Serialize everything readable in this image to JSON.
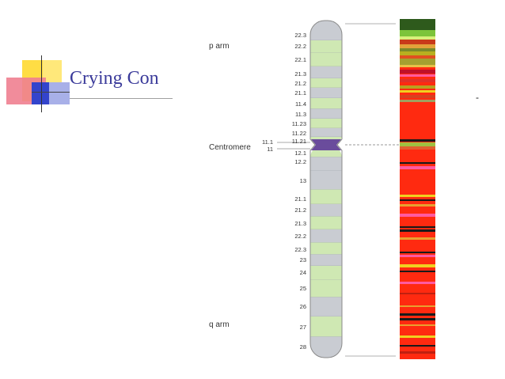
{
  "slide": {
    "title": "Crying Con",
    "marker": "-"
  },
  "colors": {
    "title": "#3a3a9a",
    "band_light": "#cfe8b3",
    "band_gray": "#c9ccd2",
    "centromere": "#6a4c9c",
    "deco_yellow": "#ffdd44",
    "deco_blue": "#3344cc",
    "deco_red": "#ee6677"
  },
  "chromosome": {
    "labels": {
      "p_arm": "p arm",
      "centromere": "Centromere",
      "q_arm": "q arm"
    },
    "left_bands": [
      "11.1",
      "11"
    ],
    "bands": [
      {
        "label": "22.3",
        "stain": "gray"
      },
      {
        "label": "22.2",
        "stain": "light"
      },
      {
        "label": "22.1",
        "stain": "light"
      },
      {
        "label": "21.3",
        "stain": "gray"
      },
      {
        "label": "21.2",
        "stain": "light"
      },
      {
        "label": "21.1",
        "stain": "gray"
      },
      {
        "label": "11.4",
        "stain": "light"
      },
      {
        "label": "11.3",
        "stain": "gray"
      },
      {
        "label": "11.23",
        "stain": "light"
      },
      {
        "label": "11.22",
        "stain": "gray"
      },
      {
        "label": "11.21",
        "stain": "light"
      },
      {
        "label": "12.1",
        "stain": "light"
      },
      {
        "label": "12.2",
        "stain": "gray"
      },
      {
        "label": "13",
        "stain": "gray"
      },
      {
        "label": "21.1",
        "stain": "light"
      },
      {
        "label": "21.2",
        "stain": "gray"
      },
      {
        "label": "21.3",
        "stain": "light"
      },
      {
        "label": "22.2",
        "stain": "gray"
      },
      {
        "label": "22.3",
        "stain": "light"
      },
      {
        "label": "23",
        "stain": "gray"
      },
      {
        "label": "24",
        "stain": "light"
      },
      {
        "label": "25",
        "stain": "light"
      },
      {
        "label": "26",
        "stain": "gray"
      },
      {
        "label": "27",
        "stain": "light"
      },
      {
        "label": "28",
        "stain": "gray"
      }
    ]
  },
  "heatmap": {
    "stripe_colors": [
      "#2e5a1c",
      "#7cc43a",
      "#d7f07a",
      "#c83a1a",
      "#e2a23a",
      "#7a8a2a",
      "#b8b020",
      "#e05020",
      "#ff2a10",
      "#ff3a8a",
      "#ff2a10",
      "#f0d020",
      "#1a1a1a",
      "#ff5aa0",
      "#ff2a10",
      "#e8a030",
      "#ff2a10",
      "#ff2a10",
      "#1a1a1a",
      "#ff2a10",
      "#c02010"
    ]
  }
}
